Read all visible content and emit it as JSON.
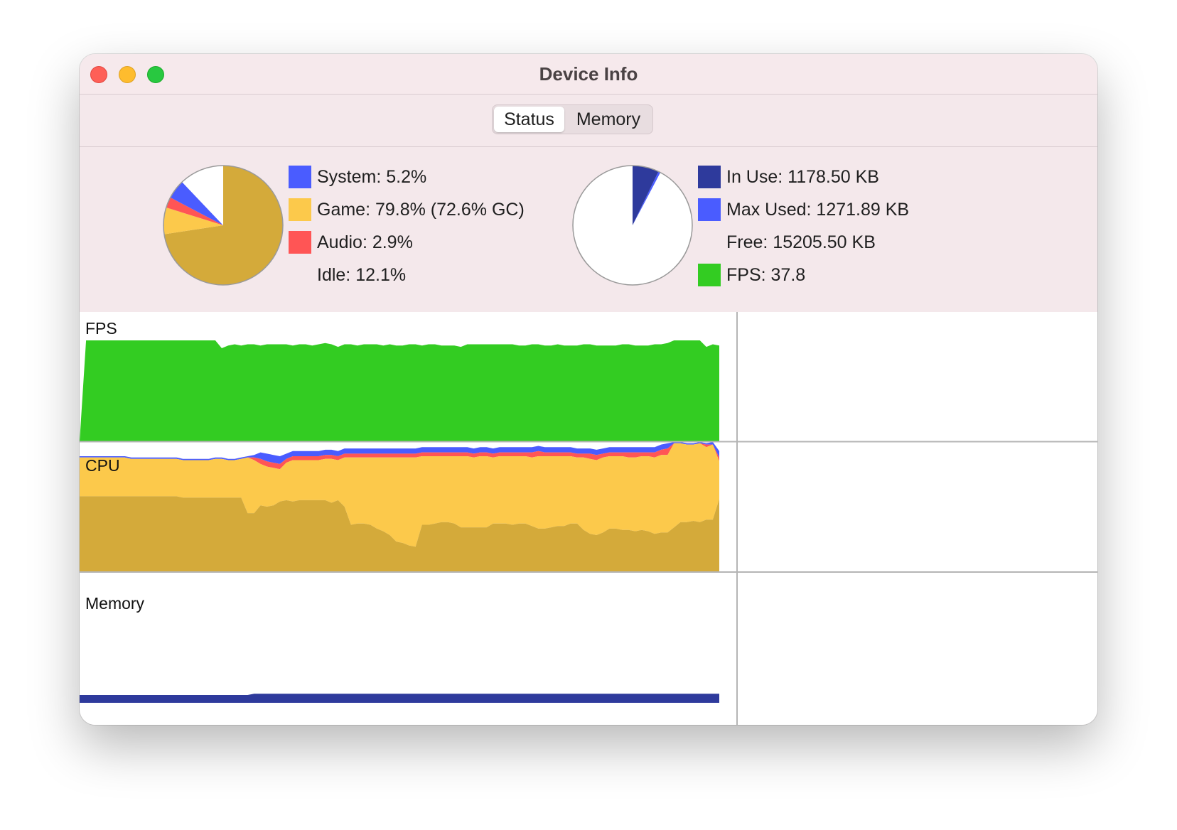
{
  "window": {
    "title": "Device Info"
  },
  "tabs": [
    {
      "label": "Status",
      "selected": true
    },
    {
      "label": "Memory",
      "selected": false
    }
  ],
  "colors": {
    "system": "#4a5cff",
    "game": "#fcc94b",
    "game_gc": "#d4aa3a",
    "audio": "#ff5555",
    "in_use": "#2e3a9c",
    "max_used": "#4a5cff",
    "fps": "#33cc22"
  },
  "cpu": {
    "legend": [
      {
        "key": "system",
        "label": "System: 5.2%",
        "color": "#4a5cff"
      },
      {
        "key": "game",
        "label": "Game: 79.8% (72.6% GC)",
        "color": "#fcc94b"
      },
      {
        "key": "audio",
        "label": "Audio: 2.9%",
        "color": "#ff5555"
      },
      {
        "key": "idle",
        "label": "Idle: 12.1%",
        "color": ""
      }
    ],
    "pie": {
      "system": 5.2,
      "game": 79.8,
      "game_gc": 72.6,
      "audio": 2.9,
      "idle": 12.1
    }
  },
  "memory": {
    "legend": [
      {
        "key": "in_use",
        "label": "In Use: 1178.50 KB",
        "color": "#2e3a9c"
      },
      {
        "key": "max_used",
        "label": "Max Used: 1271.89 KB",
        "color": "#4a5cff"
      },
      {
        "key": "free",
        "label": "Free: 15205.50 KB",
        "color": ""
      },
      {
        "key": "fps",
        "label": "FPS: 37.8",
        "color": "#33cc22"
      }
    ],
    "pie": {
      "in_use": 1178.5,
      "max_used": 1271.89,
      "free": 15205.5
    }
  },
  "graphs": {
    "fps_label": "FPS",
    "cpu_label": "CPU",
    "memory_label": "Memory"
  },
  "chart_data": [
    {
      "type": "area",
      "ylabel": "",
      "ylim": [
        0,
        1
      ],
      "series": [
        {
          "name": "FPS",
          "values": [
            0.0,
            0.78,
            0.78,
            0.78,
            0.78,
            0.78,
            0.78,
            0.78,
            0.78,
            0.78,
            0.78,
            0.78,
            0.78,
            0.78,
            0.78,
            0.78,
            0.78,
            0.78,
            0.78,
            0.78,
            0.78,
            0.78,
            0.72,
            0.74,
            0.75,
            0.74,
            0.75,
            0.75,
            0.74,
            0.75,
            0.75,
            0.75,
            0.75,
            0.74,
            0.75,
            0.75,
            0.74,
            0.75,
            0.76,
            0.75,
            0.73,
            0.75,
            0.75,
            0.74,
            0.75,
            0.75,
            0.75,
            0.74,
            0.75,
            0.74,
            0.74,
            0.75,
            0.75,
            0.74,
            0.75,
            0.75,
            0.74,
            0.74,
            0.74,
            0.73,
            0.75,
            0.75,
            0.75,
            0.75,
            0.75,
            0.75,
            0.75,
            0.75,
            0.74,
            0.74,
            0.75,
            0.75,
            0.74,
            0.74,
            0.75,
            0.74,
            0.74,
            0.74,
            0.75,
            0.75,
            0.74,
            0.74,
            0.74,
            0.74,
            0.75,
            0.75,
            0.74,
            0.74,
            0.74,
            0.75,
            0.75,
            0.76,
            0.78,
            0.78,
            0.78,
            0.78,
            0.78,
            0.73,
            0.75,
            0.74
          ]
        }
      ]
    },
    {
      "type": "area",
      "ylabel": "",
      "ylim": [
        0,
        100
      ],
      "series": [
        {
          "name": "GC",
          "values": [
            58,
            58,
            58,
            58,
            58,
            58,
            58,
            58,
            58,
            58,
            58,
            58,
            58,
            58,
            58,
            58,
            57,
            57,
            57,
            57,
            57,
            57,
            57,
            57,
            57,
            57,
            45,
            45,
            51,
            50,
            51,
            54,
            55,
            54,
            55,
            55,
            55,
            55,
            55,
            53,
            55,
            50,
            36,
            37,
            37,
            36,
            33,
            31,
            28,
            23,
            22,
            20,
            19,
            36,
            36,
            37,
            38,
            38,
            37,
            34,
            34,
            34,
            34,
            34,
            37,
            37,
            37,
            36,
            37,
            37,
            35,
            33,
            33,
            34,
            35,
            35,
            37,
            37,
            32,
            29,
            28,
            30,
            33,
            33,
            32,
            32,
            31,
            32,
            31,
            29,
            30,
            30,
            34,
            38,
            38,
            39,
            38,
            40,
            40,
            56
          ]
        },
        {
          "name": "Game",
          "values": [
            88,
            88,
            88,
            88,
            88,
            88,
            88,
            88,
            87,
            87,
            87,
            87,
            87,
            87,
            87,
            87,
            86,
            86,
            86,
            86,
            86,
            87,
            87,
            86,
            86,
            87,
            88,
            86,
            83,
            81,
            80,
            79,
            84,
            86,
            86,
            86,
            86,
            86,
            87,
            87,
            86,
            88,
            88,
            88,
            88,
            88,
            88,
            88,
            88,
            88,
            88,
            88,
            88,
            89,
            89,
            89,
            89,
            89,
            89,
            89,
            89,
            88,
            89,
            89,
            88,
            89,
            89,
            89,
            89,
            89,
            88,
            89,
            89,
            89,
            89,
            89,
            89,
            88,
            88,
            87,
            86,
            88,
            89,
            89,
            89,
            88,
            88,
            89,
            89,
            88,
            90,
            90,
            99,
            99,
            98,
            98,
            99,
            96,
            98,
            85
          ]
        },
        {
          "name": "Audio",
          "values": [
            0,
            0,
            0,
            0,
            0,
            0,
            0,
            0,
            0,
            0,
            0,
            0,
            0,
            0,
            0,
            0,
            0,
            0,
            0,
            0,
            0,
            0,
            0,
            0,
            0,
            0,
            0,
            2,
            4,
            4,
            4,
            4,
            3,
            3,
            3,
            3,
            3,
            3,
            3,
            3,
            3,
            3,
            3,
            3,
            3,
            3,
            3,
            3,
            3,
            3,
            3,
            3,
            3,
            3,
            3,
            3,
            3,
            3,
            3,
            3,
            3,
            3,
            3,
            3,
            3,
            3,
            3,
            3,
            3,
            3,
            4,
            4,
            3,
            3,
            3,
            3,
            3,
            3,
            3,
            4,
            4,
            3,
            3,
            3,
            3,
            4,
            4,
            3,
            3,
            4,
            4,
            5,
            0,
            0,
            0,
            0,
            0,
            2,
            0,
            3
          ]
        },
        {
          "name": "System",
          "values": [
            1,
            1,
            1,
            1,
            1,
            1,
            1,
            1,
            1,
            1,
            1,
            1,
            1,
            1,
            1,
            1,
            1,
            1,
            1,
            1,
            1,
            1,
            1,
            1,
            1,
            1,
            1,
            2,
            5,
            6,
            6,
            6,
            4,
            4,
            4,
            4,
            4,
            4,
            4,
            4,
            4,
            4,
            4,
            4,
            4,
            4,
            4,
            4,
            4,
            4,
            4,
            4,
            4,
            4,
            4,
            4,
            4,
            4,
            4,
            4,
            4,
            4,
            4,
            4,
            4,
            4,
            4,
            4,
            4,
            4,
            4,
            4,
            4,
            4,
            4,
            4,
            4,
            4,
            4,
            4,
            4,
            4,
            4,
            4,
            4,
            4,
            4,
            4,
            4,
            4,
            4,
            4,
            1,
            1,
            1,
            1,
            1,
            1,
            2,
            5
          ]
        }
      ]
    },
    {
      "type": "area",
      "ylabel": "",
      "ylim": [
        0,
        100
      ],
      "series": [
        {
          "name": "In Use",
          "values": [
            6,
            6,
            6,
            6,
            6,
            6,
            6,
            6,
            6,
            6,
            6,
            6,
            6,
            6,
            6,
            6,
            6,
            6,
            6,
            6,
            6,
            6,
            6,
            6,
            6,
            6,
            6,
            7,
            7,
            7,
            7,
            7,
            7,
            7,
            7,
            7,
            7,
            7,
            7,
            7,
            7,
            7,
            7,
            7,
            7,
            7,
            7,
            7,
            7,
            7,
            7,
            7,
            7,
            7,
            7,
            7,
            7,
            7,
            7,
            7,
            7,
            7,
            7,
            7,
            7,
            7,
            7,
            7,
            7,
            7,
            7,
            7,
            7,
            7,
            7,
            7,
            7,
            7,
            7,
            7,
            7,
            7,
            7,
            7,
            7,
            7,
            7,
            7,
            7,
            7,
            7,
            7,
            7,
            7,
            7,
            7,
            7,
            7,
            7,
            7
          ]
        }
      ]
    }
  ]
}
